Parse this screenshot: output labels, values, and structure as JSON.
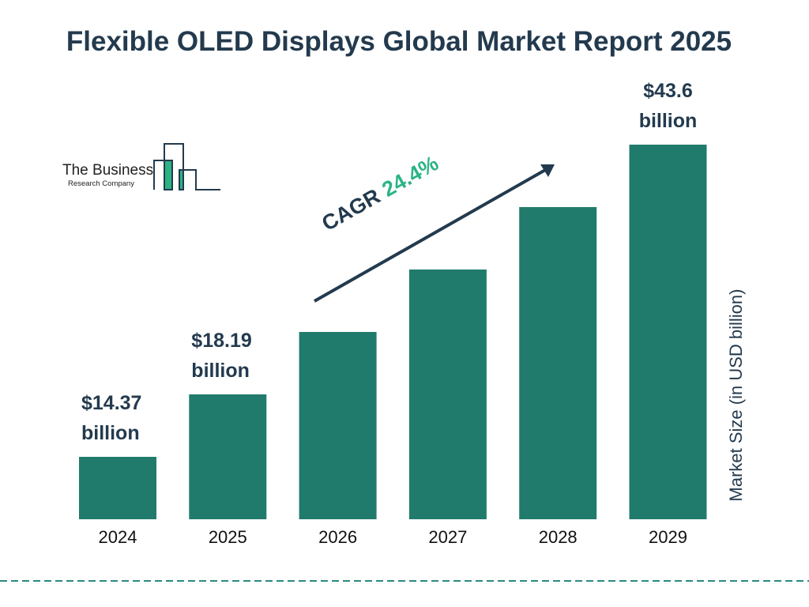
{
  "chart_data": {
    "type": "bar",
    "title": "Flexible OLED Displays Global Market Report 2025",
    "categories": [
      "2024",
      "2025",
      "2026",
      "2027",
      "2028",
      "2029"
    ],
    "values": [
      14.37,
      18.19,
      22.63,
      28.15,
      35.02,
      43.6
    ],
    "data_labels": [
      "$14.37 billion",
      "$18.19 billion",
      "",
      "",
      "",
      "$43.6 billion"
    ],
    "ylabel": "Market Size (in USD billion)",
    "xlabel": "",
    "grid": false,
    "annotation": {
      "label": "CAGR",
      "value": "24.4%"
    },
    "colors": {
      "bar": "#217b6c",
      "text": "#233a4e",
      "accent": "#2bb383"
    }
  },
  "logo": {
    "line1": "The Business",
    "line2": "Research Company"
  }
}
